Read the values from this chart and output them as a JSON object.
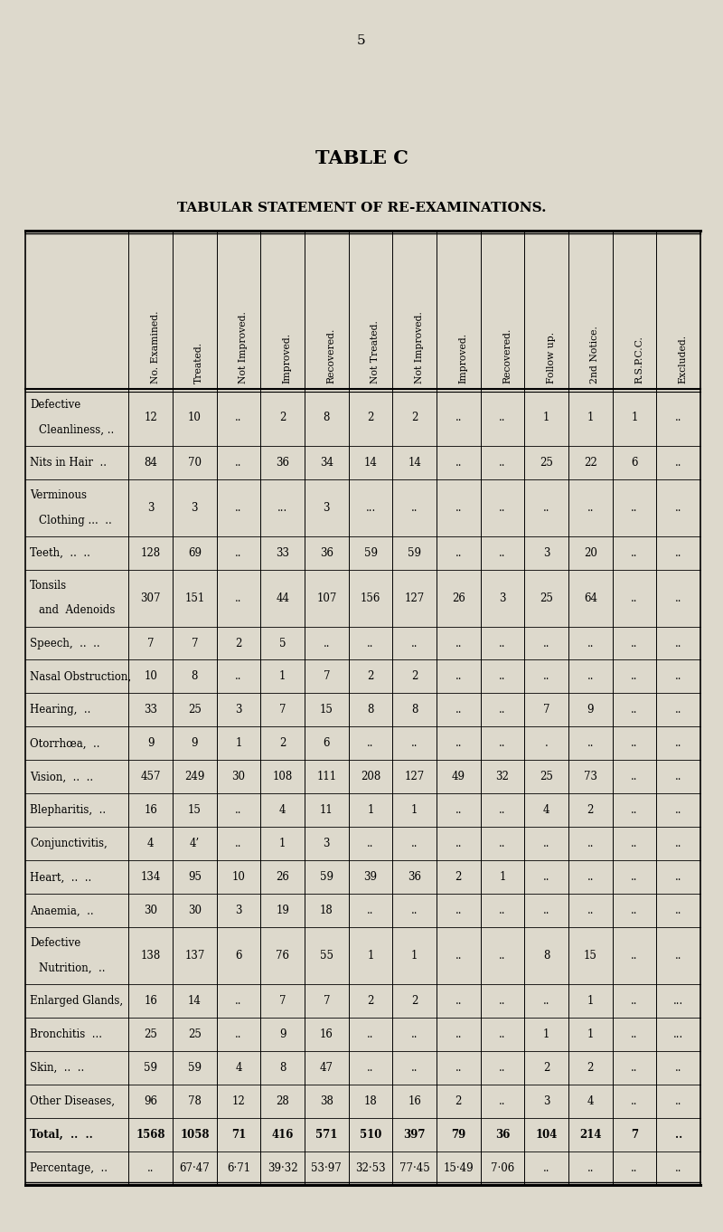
{
  "page_number": "5",
  "title": "TABLE C",
  "subtitle": "TABULAR STATEMENT OF RE-EXAMINATIONS.",
  "bg_color": "#ddd9cc",
  "col_headers": [
    "No. Examined.",
    "Treated.",
    "Not Improved.",
    "Improved.",
    "Recovered.",
    "Not Treated.",
    "Not Improved.",
    "Improved.",
    "Recovered.",
    "Follow up.",
    "2nd Notice.",
    "R.S.P.C.C.",
    "Excluded."
  ],
  "rows": [
    {
      "label_lines": [
        "Defective",
        "Cleanliness, .."
      ],
      "values": [
        "12",
        "10",
        "..",
        "2",
        "8",
        "2",
        "2",
        "..",
        "..",
        "1",
        "1",
        "1",
        ".."
      ],
      "bold": false,
      "two_line": true
    },
    {
      "label_lines": [
        "Nits in Hair  .."
      ],
      "values": [
        "84",
        "70",
        "..",
        "36",
        "34",
        "14",
        "14",
        "..",
        "..",
        "25",
        "22",
        "6",
        ".."
      ],
      "bold": false,
      "two_line": false
    },
    {
      "label_lines": [
        "Verminous",
        "Clothing ...  .."
      ],
      "values": [
        "3",
        "3",
        "..",
        "...",
        "3",
        "...",
        "..",
        "..",
        "..",
        "..",
        "..",
        "..",
        ".."
      ],
      "bold": false,
      "two_line": true
    },
    {
      "label_lines": [
        "Teeth,  ..  .."
      ],
      "values": [
        "128",
        "69",
        "..",
        "33",
        "36",
        "59",
        "59",
        "..",
        "..",
        "3",
        "20",
        "..",
        ".."
      ],
      "bold": false,
      "two_line": false
    },
    {
      "label_lines": [
        "Tonsils",
        "and  Adenoids"
      ],
      "values": [
        "307",
        "151",
        "..",
        "44",
        "107",
        "156",
        "127",
        "26",
        "3",
        "25",
        "64",
        "..",
        ".."
      ],
      "bold": false,
      "two_line": true
    },
    {
      "label_lines": [
        "Speech,  ..  .."
      ],
      "values": [
        "7",
        "7",
        "2",
        "5",
        "..",
        "..",
        "..",
        "..",
        "..",
        "..",
        "..",
        "..",
        ".."
      ],
      "bold": false,
      "two_line": false
    },
    {
      "label_lines": [
        "Nasal Obstruction,"
      ],
      "values": [
        "10",
        "8",
        "..",
        "1",
        "7",
        "2",
        "2",
        "..",
        "..",
        "..",
        "..",
        "..",
        ".."
      ],
      "bold": false,
      "two_line": false
    },
    {
      "label_lines": [
        "Hearing,  .."
      ],
      "values": [
        "33",
        "25",
        "3",
        "7",
        "15",
        "8",
        "8",
        "..",
        "..",
        "7",
        "9",
        "..",
        ".."
      ],
      "bold": false,
      "two_line": false
    },
    {
      "label_lines": [
        "Otorrhœa,  .."
      ],
      "values": [
        "9",
        "9",
        "1",
        "2",
        "6",
        "..",
        "..",
        "..",
        "..",
        ".",
        "..",
        "..",
        ".."
      ],
      "bold": false,
      "two_line": false
    },
    {
      "label_lines": [
        "Vision,  ..  .."
      ],
      "values": [
        "457",
        "249",
        "30",
        "108",
        "111",
        "208",
        "127",
        "49",
        "32",
        "25",
        "73",
        "..",
        ".."
      ],
      "bold": false,
      "two_line": false
    },
    {
      "label_lines": [
        "Blepharitis,  .."
      ],
      "values": [
        "16",
        "15",
        "..",
        "4",
        "11",
        "1",
        "1",
        "..",
        "..",
        "4",
        "2",
        "..",
        ".."
      ],
      "bold": false,
      "two_line": false
    },
    {
      "label_lines": [
        "Conjunctivitis,"
      ],
      "values": [
        "4",
        "4’",
        "..",
        "1",
        "3",
        "..",
        "..",
        "..",
        "..",
        "..",
        "..",
        "..",
        ".."
      ],
      "bold": false,
      "two_line": false
    },
    {
      "label_lines": [
        "Heart,  ..  .."
      ],
      "values": [
        "134",
        "95",
        "10",
        "26",
        "59",
        "39",
        "36",
        "2",
        "1",
        "..",
        "..",
        "..",
        ".."
      ],
      "bold": false,
      "two_line": false
    },
    {
      "label_lines": [
        "Anaemia,  .."
      ],
      "values": [
        "30",
        "30",
        "3",
        "19",
        "18",
        "..",
        "..",
        "..",
        "..",
        "..",
        "..",
        "..",
        ".."
      ],
      "bold": false,
      "two_line": false
    },
    {
      "label_lines": [
        "Defective",
        "Nutrition,  .."
      ],
      "values": [
        "138",
        "137",
        "6",
        "76",
        "55",
        "1",
        "1",
        "..",
        "..",
        "8",
        "15",
        "..",
        ".."
      ],
      "bold": false,
      "two_line": true
    },
    {
      "label_lines": [
        "Enlarged Glands,"
      ],
      "values": [
        "16",
        "14",
        "..",
        "7",
        "7",
        "2",
        "2",
        "..",
        "..",
        "..",
        "1",
        "..",
        "..."
      ],
      "bold": false,
      "two_line": false
    },
    {
      "label_lines": [
        "Bronchitis  ..."
      ],
      "values": [
        "25",
        "25",
        "..",
        "9",
        "16",
        "..",
        "..",
        "..",
        "..",
        "1",
        "1",
        "..",
        "..."
      ],
      "bold": false,
      "two_line": false
    },
    {
      "label_lines": [
        "Skin,  ..  .."
      ],
      "values": [
        "59",
        "59",
        "4",
        "8",
        "47",
        "..",
        "..",
        "..",
        "..",
        "2",
        "2",
        "..",
        ".."
      ],
      "bold": false,
      "two_line": false
    },
    {
      "label_lines": [
        "Other Diseases,"
      ],
      "values": [
        "96",
        "78",
        "12",
        "28",
        "38",
        "18",
        "16",
        "2",
        "..",
        "3",
        "4",
        "..",
        ".."
      ],
      "bold": false,
      "two_line": false
    },
    {
      "label_lines": [
        "Total,  ..  .."
      ],
      "values": [
        "1568",
        "1058",
        "71",
        "416",
        "571",
        "510",
        "397",
        "79",
        "36",
        "104",
        "214",
        "7",
        ".."
      ],
      "bold": true,
      "two_line": false
    },
    {
      "label_lines": [
        "Percentage,  .."
      ],
      "values": [
        "..",
        "67·47",
        "6·71",
        "39·32",
        "53·97",
        "32·53",
        "77·45",
        "15·49",
        "7·06",
        "..",
        "..",
        "..",
        ".."
      ],
      "bold": false,
      "two_line": false
    }
  ]
}
